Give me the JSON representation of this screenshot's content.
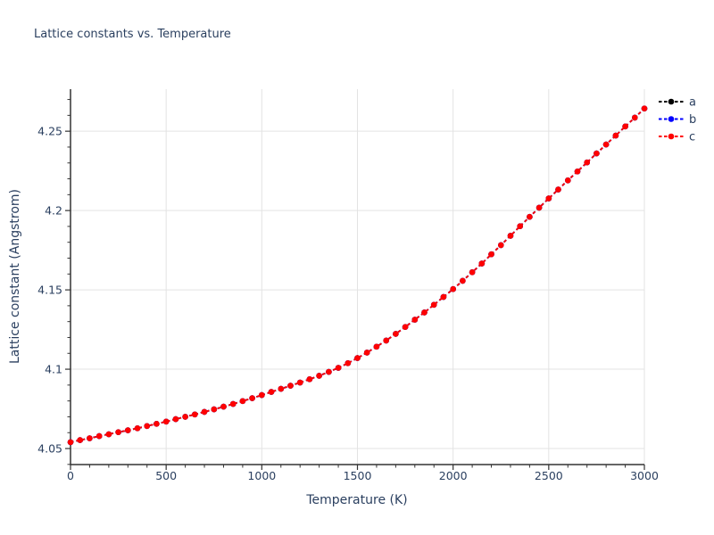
{
  "page": {
    "background": "#ffffff"
  },
  "header": {
    "title": "Lattice constants vs. Temperature"
  },
  "legend": {
    "position": "top-right-outside",
    "items": [
      {
        "label": "a",
        "color": "#000000",
        "sample": "dashed-line-with-dot"
      },
      {
        "label": "b",
        "color": "#0000ff",
        "sample": "dashed-line-with-dot"
      },
      {
        "label": "c",
        "color": "#ff0000",
        "sample": "dashed-line-with-dot"
      }
    ]
  },
  "chart_data": {
    "type": "line",
    "title": "Lattice constants vs. Temperature",
    "xlabel": "Temperature (K)",
    "ylabel": "Lattice constant (Angstrom)",
    "xlim": [
      0,
      3000
    ],
    "ylim": [
      4.0399,
      4.2765
    ],
    "x_ticks": [
      0,
      500,
      1000,
      1500,
      2000,
      2500,
      3000
    ],
    "x_tick_labels": [
      "0",
      "500",
      "1000",
      "1500",
      "2000",
      "2500",
      "3000"
    ],
    "y_ticks": [
      4.05,
      4.1,
      4.15,
      4.2,
      4.25
    ],
    "y_tick_labels": [
      "4.05",
      "4.1",
      "4.15",
      "4.2",
      "4.25"
    ],
    "x_minor_step": 100,
    "y_minor_step": 0.01,
    "grid": true,
    "grid_on_major_ticks_only": true,
    "legend_position": "top-right-outside",
    "line_style": "dashed",
    "marker": "circle",
    "style": {
      "grid_color": "#e3e3e3",
      "axis_color": "#333333",
      "text_color": "#2a3f5f",
      "background": "#ffffff"
    },
    "x": [
      0,
      50,
      100,
      150,
      200,
      250,
      300,
      350,
      400,
      450,
      500,
      550,
      600,
      650,
      700,
      750,
      800,
      850,
      900,
      950,
      1000,
      1050,
      1100,
      1150,
      1200,
      1250,
      1300,
      1350,
      1400,
      1450,
      1500,
      1550,
      1600,
      1650,
      1700,
      1750,
      1800,
      1850,
      1900,
      1950,
      2000,
      2050,
      2100,
      2150,
      2200,
      2250,
      2300,
      2350,
      2400,
      2450,
      2500,
      2550,
      2600,
      2650,
      2700,
      2750,
      2800,
      2850,
      2900,
      2950,
      3000
    ],
    "shared_values": [
      4.054,
      4.0553,
      4.0565,
      4.0578,
      4.059,
      4.0603,
      4.0615,
      4.0628,
      4.0642,
      4.0656,
      4.067,
      4.0685,
      4.07,
      4.0715,
      4.0731,
      4.0747,
      4.0764,
      4.0781,
      4.0799,
      4.0817,
      4.0837,
      4.0857,
      4.0876,
      4.0896,
      4.0916,
      4.0937,
      4.0959,
      4.0983,
      4.1009,
      4.1038,
      4.107,
      4.1105,
      4.1142,
      4.1181,
      4.1223,
      4.1266,
      4.1312,
      4.1358,
      4.1406,
      4.1455,
      4.1505,
      4.1557,
      4.1611,
      4.1666,
      4.1724,
      4.1782,
      4.1841,
      4.1901,
      4.196,
      4.2018,
      4.2076,
      4.2133,
      4.219,
      4.2246,
      4.2303,
      4.236,
      4.2416,
      4.2473,
      4.253,
      4.2586,
      4.2643
    ],
    "series": [
      {
        "name": "a",
        "color": "#000000",
        "values_ref": "shared_values"
      },
      {
        "name": "b",
        "color": "#0000ff",
        "values_ref": "shared_values"
      },
      {
        "name": "c",
        "color": "#ff0000",
        "values_ref": "shared_values"
      }
    ],
    "note": "Series a, b and c coincide exactly (cubic lattice a=b=c); red series c is drawn on top so only red is visible."
  }
}
